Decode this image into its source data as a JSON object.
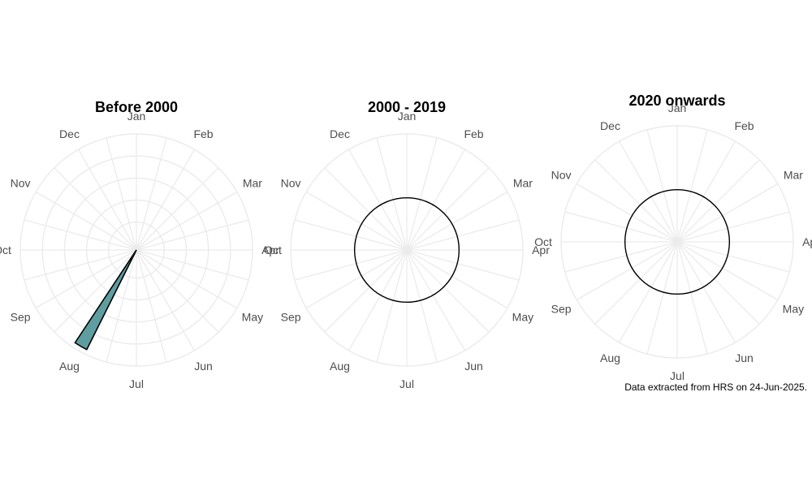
{
  "chart_data": [
    {
      "type": "polar-bar",
      "title": "Before 2000",
      "categories": [
        "Jan",
        "Feb",
        "Mar",
        "Apr",
        "May",
        "Jun",
        "Jul",
        "Aug",
        "Sep",
        "Oct",
        "Nov",
        "Dec"
      ],
      "series": [
        {
          "values": [
            0,
            0,
            0,
            0,
            0,
            0,
            0,
            1,
            0,
            0,
            0,
            0
          ]
        }
      ],
      "rlim": [
        0,
        1
      ],
      "grid": true
    },
    {
      "type": "polar-bar",
      "title": "2000 - 2019",
      "categories": [
        "Jan",
        "Feb",
        "Mar",
        "Apr",
        "May",
        "Jun",
        "Jul",
        "Aug",
        "Sep",
        "Oct",
        "Nov",
        "Dec"
      ],
      "series": [
        {
          "values": [
            0,
            0,
            0,
            0,
            0,
            0,
            0,
            0,
            0,
            0,
            0,
            0
          ]
        }
      ],
      "grid": true
    },
    {
      "type": "polar-bar",
      "title": "2020 onwards",
      "categories": [
        "Jan",
        "Feb",
        "Mar",
        "Apr",
        "May",
        "Jun",
        "Jul",
        "Aug",
        "Sep",
        "Oct",
        "Nov",
        "Dec"
      ],
      "series": [
        {
          "values": [
            0,
            0,
            0,
            0,
            0,
            0,
            0,
            0,
            0,
            0,
            0,
            0
          ]
        }
      ],
      "grid": true
    }
  ],
  "colors": {
    "bar_fill": "#5f9ea0",
    "bar_stroke": "#000000",
    "grid": "#ebebeb",
    "label": "#4d4d4d"
  },
  "caption": "Data extracted from HRS on 24-Jun-2025."
}
